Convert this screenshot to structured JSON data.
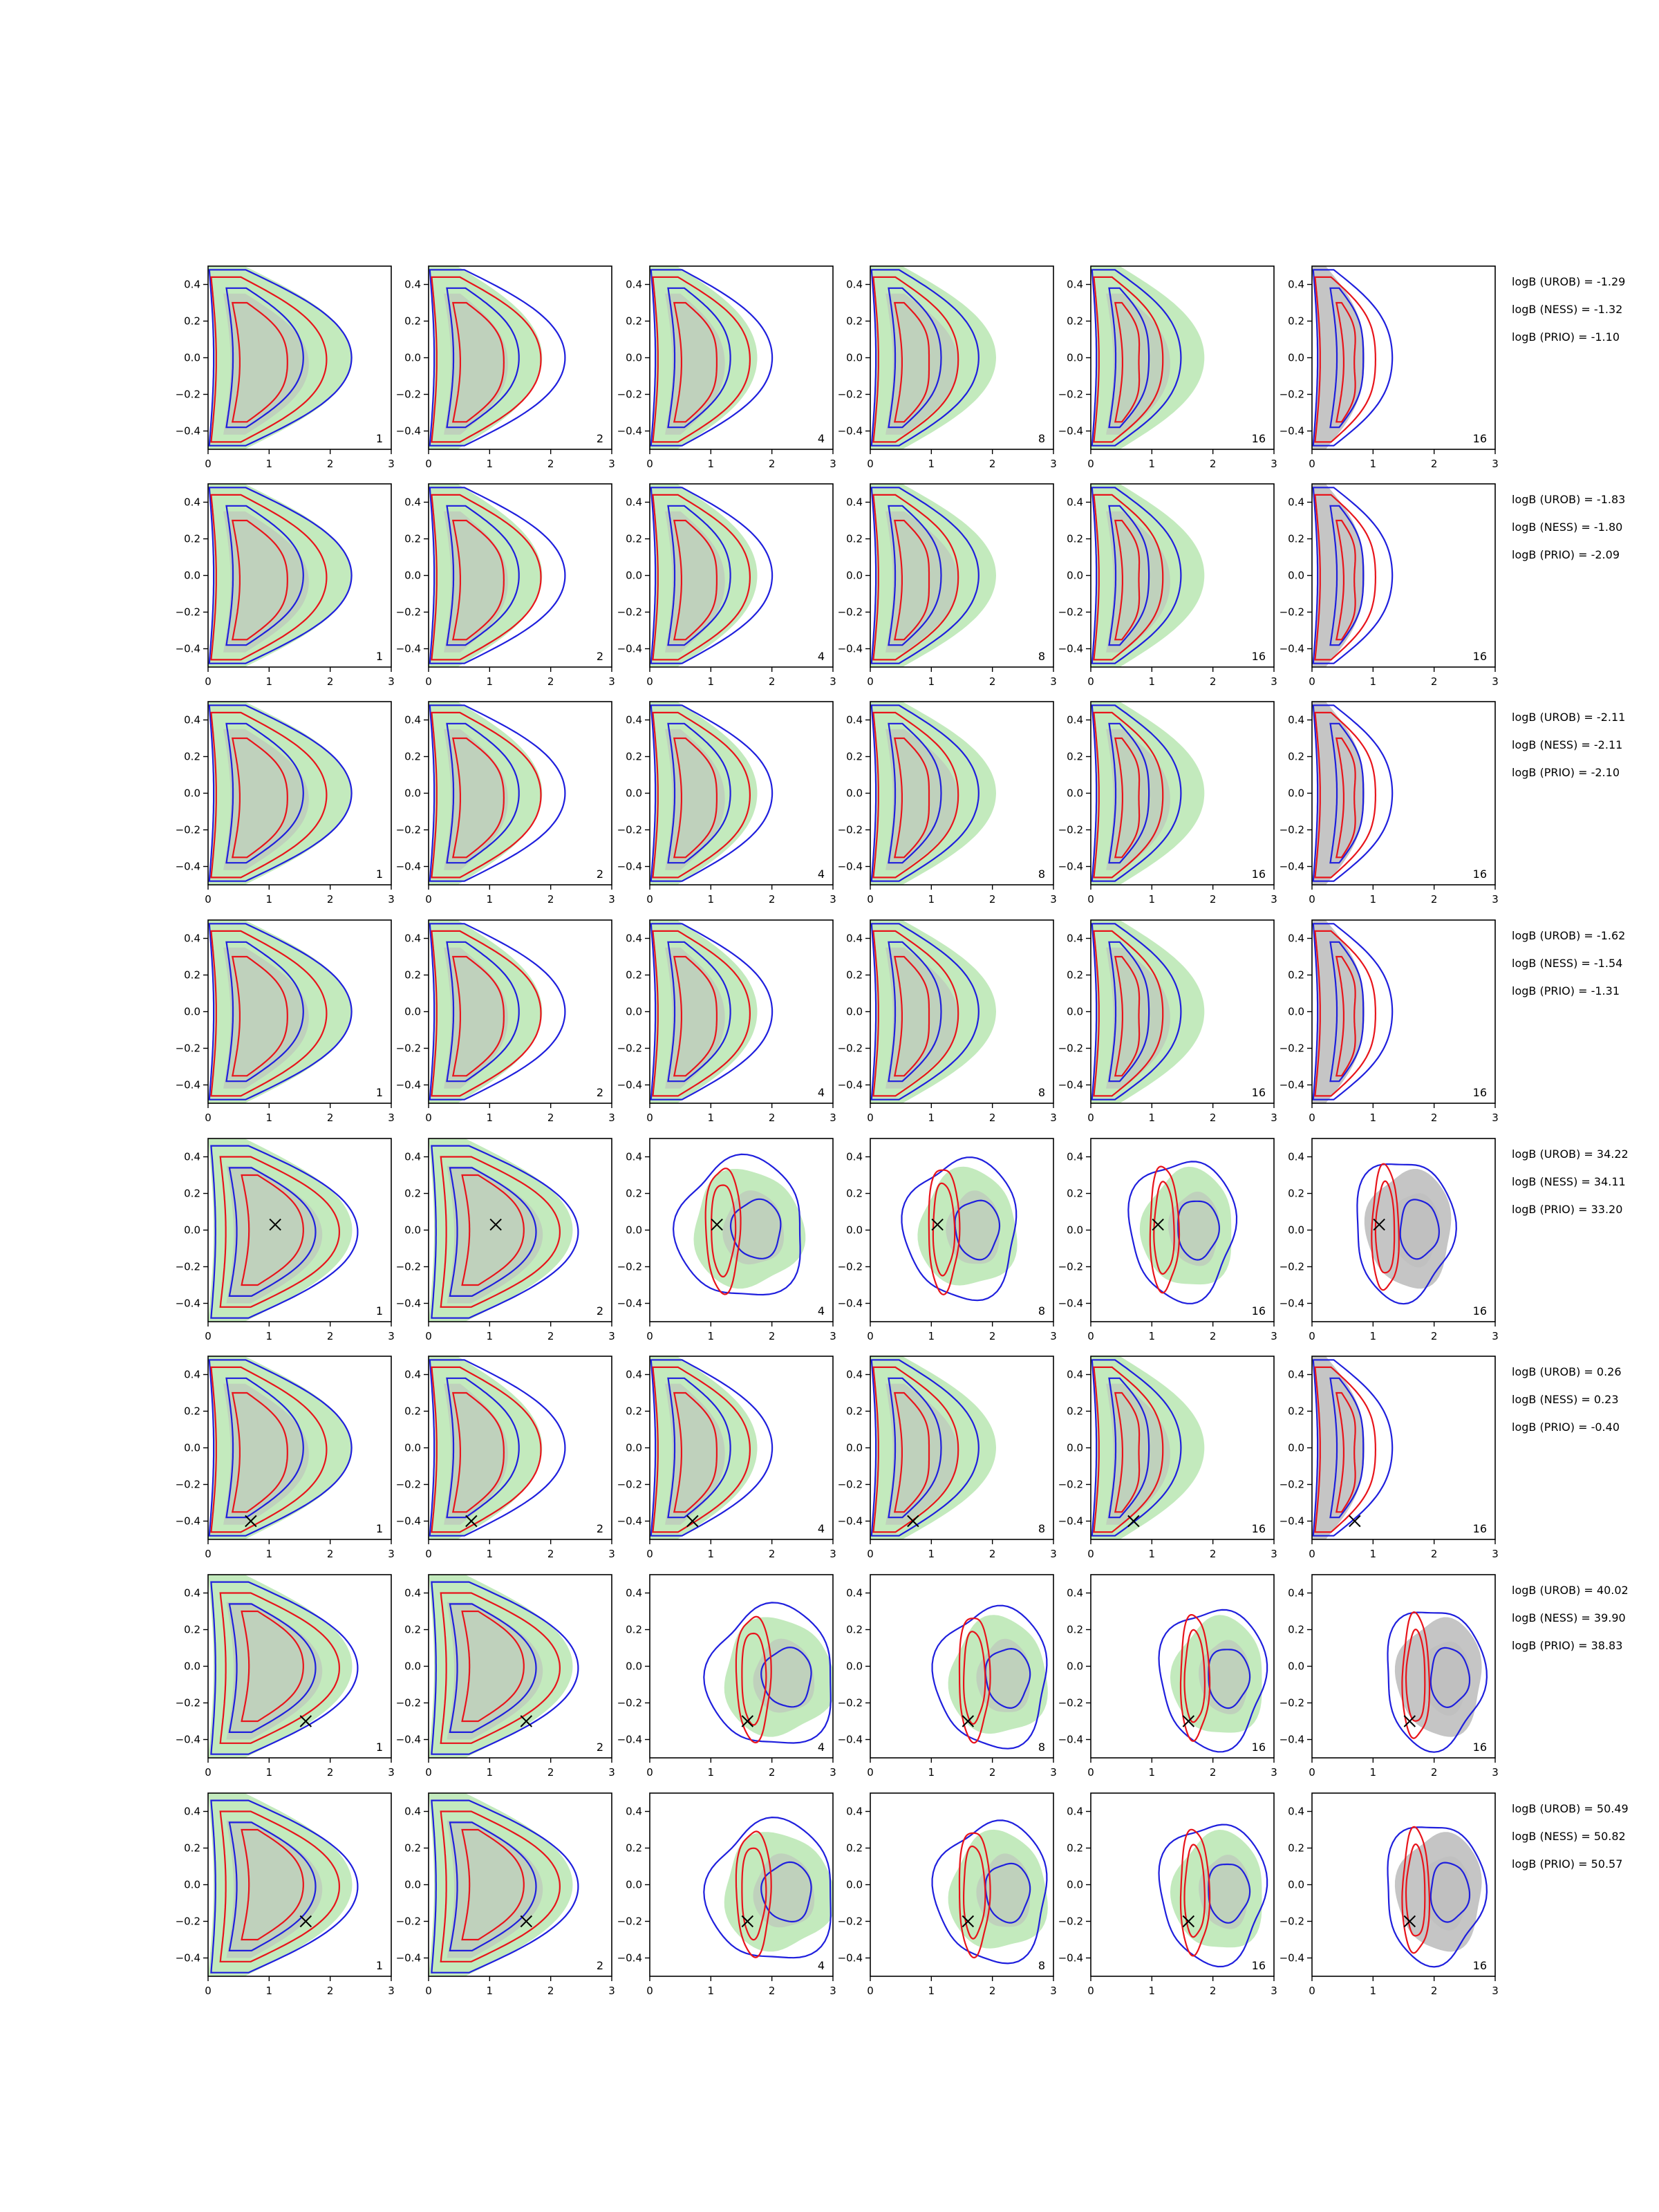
{
  "chart_data": {
    "type": "contour-grid",
    "description_text": "",
    "x_range": [
      0,
      3
    ],
    "y_range": [
      -0.5,
      0.5
    ],
    "x_ticks": [
      "0",
      "1",
      "2",
      "3"
    ],
    "y_ticks": [
      "−0.4",
      "−0.2",
      "0.0",
      "0.2",
      "0.4"
    ],
    "column_labels": [
      "1",
      "2",
      "4",
      "8",
      "16",
      "16"
    ],
    "column_fill": [
      "green",
      "green",
      "green",
      "green",
      "green",
      "gray"
    ],
    "series_colors": {
      "inner_shaded": "#bbbbbb",
      "outer_shaded": "#b9e6b1",
      "red": "#e8141b",
      "blue": "#1f1fdd",
      "marker": "#000000"
    },
    "rows": [
      {
        "marker": null,
        "mode": "crescent",
        "logB": [
          "logB (UROB) = -1.29",
          "logB (NESS) = -1.32",
          "logB (PRIO) = -1.10"
        ]
      },
      {
        "marker": null,
        "mode": "crescent",
        "logB": [
          "logB (UROB) = -1.83",
          "logB (NESS) = -1.80",
          "logB (PRIO) = -2.09"
        ]
      },
      {
        "marker": null,
        "mode": "crescent",
        "logB": [
          "logB (UROB) = -2.11",
          "logB (NESS) = -2.11",
          "logB (PRIO) = -2.10"
        ]
      },
      {
        "marker": null,
        "mode": "crescent",
        "logB": [
          "logB (UROB) = -1.62",
          "logB (NESS) = -1.54",
          "logB (PRIO) = -1.31"
        ]
      },
      {
        "marker": [
          1.1,
          0.03
        ],
        "mode": "converge",
        "logB": [
          "logB (UROB) = 34.22",
          "logB (NESS) = 34.11",
          "logB (PRIO) = 33.20"
        ]
      },
      {
        "marker": [
          0.7,
          -0.4
        ],
        "mode": "crescent",
        "logB": [
          "logB (UROB) = 0.26",
          "logB (NESS) = 0.23",
          "logB (PRIO) = -0.40"
        ]
      },
      {
        "marker": [
          1.6,
          -0.3
        ],
        "mode": "converge",
        "logB": [
          "logB (UROB) = 40.02",
          "logB (NESS) = 39.90",
          "logB (PRIO) = 38.83"
        ]
      },
      {
        "marker": [
          1.6,
          -0.2
        ],
        "mode": "converge",
        "logB": [
          "logB (UROB) = 50.49",
          "logB (NESS) = 50.82",
          "logB (PRIO) = 50.57"
        ]
      }
    ]
  }
}
